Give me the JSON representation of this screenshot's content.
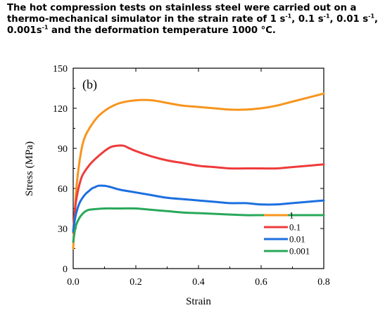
{
  "question": {
    "part1": "The hot compression tests on stainless steel were carried out on a thermo-mechanical simulator in the strain rate of 1 s",
    "part2": ", 0.1 s",
    "part3": ", 0.01 s",
    "part4": ", 0.001s",
    "part5": " and the deformation temperature 1000 °C.",
    "sup": "-1"
  },
  "chart_data": {
    "type": "line",
    "panel_label": "(b)",
    "xlabel": "Strain",
    "ylabel": "Stress (MPa)",
    "xlim": [
      0.0,
      0.8
    ],
    "ylim": [
      0,
      150
    ],
    "xticks": [
      0.0,
      0.2,
      0.4,
      0.6,
      0.8
    ],
    "xtick_labels": [
      "0.0",
      "0.2",
      "0.4",
      "0.6",
      "0.8"
    ],
    "yticks": [
      0,
      30,
      60,
      90,
      120,
      150
    ],
    "ytick_labels": [
      "0",
      "30",
      "60",
      "90",
      "120",
      "150"
    ],
    "legend_position": "bottom-right",
    "series": [
      {
        "name": "1",
        "color": "#f7941d",
        "x": [
          0.0,
          0.005,
          0.01,
          0.02,
          0.03,
          0.04,
          0.06,
          0.08,
          0.1,
          0.12,
          0.15,
          0.2,
          0.25,
          0.3,
          0.35,
          0.4,
          0.45,
          0.5,
          0.55,
          0.6,
          0.65,
          0.7,
          0.75,
          0.8
        ],
        "y": [
          15,
          40,
          60,
          80,
          93,
          100,
          108,
          114,
          118,
          121,
          124,
          126,
          126,
          124,
          122,
          121,
          120,
          119,
          119,
          120,
          122,
          125,
          128,
          131
        ]
      },
      {
        "name": "0.1",
        "color": "#ee3b3b",
        "x": [
          0.0,
          0.005,
          0.01,
          0.02,
          0.03,
          0.05,
          0.07,
          0.1,
          0.12,
          0.14,
          0.16,
          0.18,
          0.2,
          0.25,
          0.3,
          0.35,
          0.4,
          0.45,
          0.5,
          0.55,
          0.6,
          0.65,
          0.7,
          0.75,
          0.8
        ],
        "y": [
          27,
          42,
          52,
          63,
          70,
          77,
          82,
          88,
          91,
          92,
          92,
          90,
          88,
          84,
          81,
          79,
          77,
          76,
          75,
          75,
          75,
          75,
          76,
          77,
          78
        ]
      },
      {
        "name": "0.01",
        "color": "#1c6fe0",
        "x": [
          0.0,
          0.005,
          0.01,
          0.02,
          0.03,
          0.04,
          0.05,
          0.06,
          0.07,
          0.08,
          0.1,
          0.12,
          0.15,
          0.2,
          0.25,
          0.3,
          0.35,
          0.4,
          0.45,
          0.5,
          0.55,
          0.6,
          0.65,
          0.7,
          0.75,
          0.8
        ],
        "y": [
          28,
          36,
          42,
          49,
          53,
          56,
          58,
          60,
          61,
          62,
          62,
          61,
          59,
          57,
          55,
          53,
          52,
          51,
          50,
          49,
          49,
          48,
          48,
          49,
          50,
          51
        ]
      },
      {
        "name": "0.001",
        "color": "#28a85a",
        "x": [
          0.0,
          0.005,
          0.01,
          0.02,
          0.03,
          0.04,
          0.05,
          0.07,
          0.1,
          0.15,
          0.2,
          0.25,
          0.3,
          0.35,
          0.4,
          0.45,
          0.5,
          0.55,
          0.6,
          0.65,
          0.7,
          0.75,
          0.8
        ],
        "y": [
          20,
          28,
          33,
          38,
          41,
          43,
          44,
          44.5,
          45,
          45,
          45,
          44,
          43,
          42,
          41.5,
          41,
          40.5,
          40,
          40,
          40,
          40,
          40,
          40
        ]
      }
    ]
  }
}
